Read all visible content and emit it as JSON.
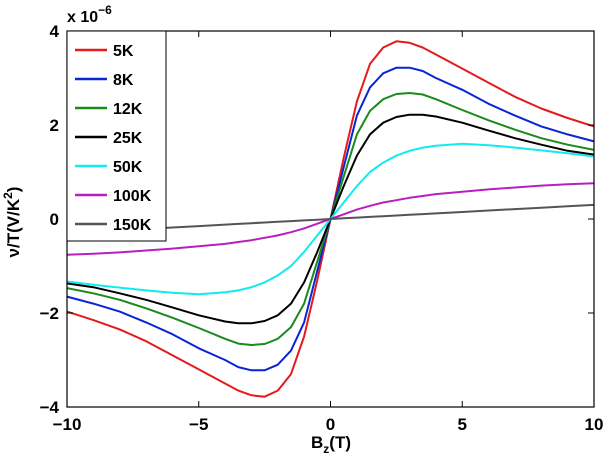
{
  "chart_data": {
    "type": "line",
    "xlabel": {
      "main": "B",
      "sub": "z",
      "rest": "(T)"
    },
    "ylabel": {
      "main": "ν/T(V/K",
      "sup": "2",
      "rest": ")"
    },
    "exponent": {
      "base": "x 10",
      "power": "−6"
    },
    "xlim": [
      -10,
      10
    ],
    "ylim": [
      -4,
      4
    ],
    "xticks": [
      -10,
      -5,
      0,
      5,
      10
    ],
    "yticks": [
      -4,
      -2,
      0,
      2,
      4
    ],
    "xtick_labels": [
      "−10",
      "−5",
      "0",
      "5",
      "10"
    ],
    "ytick_labels": [
      "−4",
      "−2",
      "0",
      "2",
      "4"
    ],
    "grid": false,
    "legend_position": "top-left",
    "x": [
      0,
      0.5,
      1,
      1.5,
      2,
      2.5,
      3,
      3.5,
      4,
      5,
      6,
      7,
      8,
      9,
      10
    ],
    "series": [
      {
        "name": "5K",
        "color": "#e41a1c",
        "values": [
          0,
          1.3,
          2.5,
          3.3,
          3.65,
          3.78,
          3.75,
          3.65,
          3.5,
          3.2,
          2.9,
          2.6,
          2.35,
          2.15,
          1.97
        ]
      },
      {
        "name": "8K",
        "color": "#0a25d6",
        "values": [
          0,
          1.1,
          2.2,
          2.8,
          3.1,
          3.22,
          3.22,
          3.15,
          3.0,
          2.75,
          2.45,
          2.2,
          1.97,
          1.8,
          1.65
        ]
      },
      {
        "name": "12K",
        "color": "#1a8a1a",
        "values": [
          0,
          0.9,
          1.8,
          2.3,
          2.55,
          2.66,
          2.68,
          2.65,
          2.55,
          2.32,
          2.1,
          1.9,
          1.72,
          1.58,
          1.47
        ]
      },
      {
        "name": "25K",
        "color": "#000000",
        "values": [
          0,
          0.7,
          1.35,
          1.8,
          2.05,
          2.17,
          2.22,
          2.22,
          2.18,
          2.05,
          1.88,
          1.72,
          1.58,
          1.45,
          1.37
        ]
      },
      {
        "name": "50K",
        "color": "#11eaf0",
        "values": [
          0,
          0.35,
          0.7,
          1.0,
          1.2,
          1.35,
          1.45,
          1.52,
          1.56,
          1.6,
          1.57,
          1.52,
          1.46,
          1.4,
          1.33
        ]
      },
      {
        "name": "100K",
        "color": "#b91fbf",
        "values": [
          0,
          0.1,
          0.2,
          0.28,
          0.35,
          0.4,
          0.45,
          0.49,
          0.53,
          0.58,
          0.63,
          0.67,
          0.71,
          0.74,
          0.76
        ]
      },
      {
        "name": "150K",
        "color": "#555555",
        "values": [
          0,
          0.015,
          0.03,
          0.045,
          0.06,
          0.075,
          0.09,
          0.105,
          0.12,
          0.15,
          0.18,
          0.21,
          0.24,
          0.27,
          0.3
        ]
      }
    ]
  }
}
